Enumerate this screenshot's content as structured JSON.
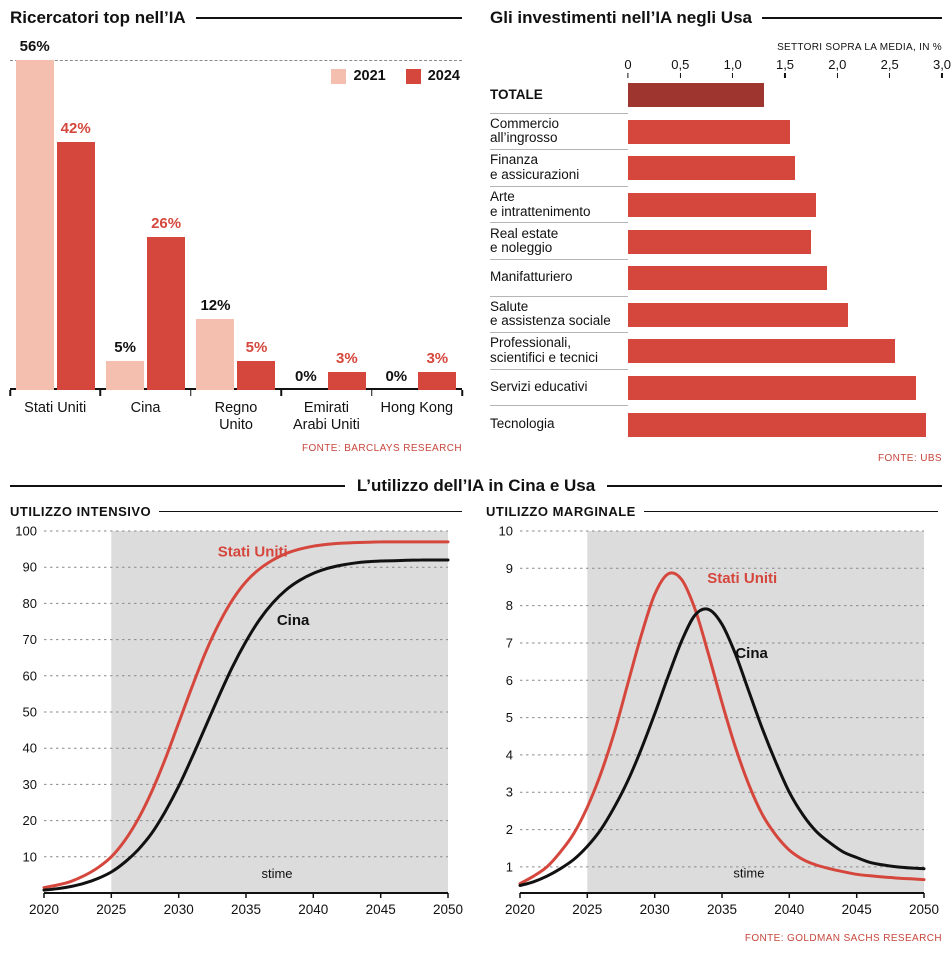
{
  "page": {
    "bottom_title": "L’utilizzo dell’IA in Cina e Usa",
    "bottom_source": "FONTE: GOLDMAN SACHS RESEARCH"
  },
  "chart_data": [
    {
      "id": "ricercatori-top-ia",
      "type": "bar",
      "title": "Ricercatori top nell’IA",
      "categories": [
        "Stati Uniti",
        "Cina",
        "Regno Unito",
        "Emirati Arabi Uniti",
        "Hong Kong"
      ],
      "category_lines": [
        [
          "Stati Uniti"
        ],
        [
          "Cina"
        ],
        [
          "Regno",
          "Unito"
        ],
        [
          "Emirati",
          "Arabi Uniti"
        ],
        [
          "Hong Kong"
        ]
      ],
      "series": [
        {
          "name": "2021",
          "color": "#f4bfae",
          "label_color": "#111111",
          "values": [
            56,
            5,
            12,
            0,
            0
          ]
        },
        {
          "name": "2024",
          "color": "#d5473d",
          "label_color": "#d5473d",
          "values": [
            42,
            26,
            5,
            3,
            3
          ]
        }
      ],
      "value_suffix": "%",
      "ylim": [
        0,
        56
      ],
      "gridline_at": 56,
      "legend_position": "top-right",
      "source": "FONTE: BARCLAYS RESEARCH"
    },
    {
      "id": "investimenti-ia-usa",
      "type": "bar",
      "orientation": "horizontal",
      "title": "Gli investimenti nell’IA negli Usa",
      "axis_caption": "SETTORI SOPRA LA MEDIA, IN %",
      "x_ticks": [
        {
          "label": "0",
          "value": 0
        },
        {
          "label": "0,5",
          "value": 0.5
        },
        {
          "label": "1,0",
          "value": 1
        },
        {
          "label": "1,5",
          "value": 1.5
        },
        {
          "label": "2,0",
          "value": 2
        },
        {
          "label": "2,5",
          "value": 2.5
        },
        {
          "label": "3,0",
          "value": 3
        }
      ],
      "xlim": [
        0,
        3
      ],
      "categories": [
        "TOTALE",
        "Commercio all’ingrosso",
        "Finanza e assicurazioni",
        "Arte e intrattenimento",
        "Real estate e noleggio",
        "Manifatturiero",
        "Salute e assistenza sociale",
        "Professionali, scientifici e tecnici",
        "Servizi educativi",
        "Tecnologia"
      ],
      "category_lines": [
        [
          "TOTALE"
        ],
        [
          "Commercio",
          "all’ingrosso"
        ],
        [
          "Finanza",
          "e assicurazioni"
        ],
        [
          "Arte",
          "e intrattenimento"
        ],
        [
          "Real estate",
          "e noleggio"
        ],
        [
          "Manifatturiero"
        ],
        [
          "Salute",
          "e assistenza sociale"
        ],
        [
          "Professionali,",
          "scientifici e tecnici"
        ],
        [
          "Servizi educativi"
        ],
        [
          "Tecnologia"
        ]
      ],
      "values": [
        1.3,
        1.55,
        1.6,
        1.8,
        1.75,
        1.9,
        2.1,
        2.55,
        2.75,
        2.85
      ],
      "emphasis_index": 0,
      "colors": {
        "emphasis": "#9e352f",
        "bar": "#d5473d"
      },
      "source": "FONTE: UBS"
    },
    {
      "id": "utilizzo-intensivo",
      "type": "line",
      "title": "UTILIZZO INTENSIVO",
      "xlim": [
        2020,
        2050
      ],
      "x_start": 2020,
      "x_step": 1,
      "x_ticks": [
        2020,
        2025,
        2030,
        2035,
        2040,
        2045,
        2050
      ],
      "y_ticks": [
        10,
        20,
        30,
        40,
        50,
        60,
        70,
        80,
        90,
        100
      ],
      "ylim": [
        0,
        100
      ],
      "forecast_from": 2025,
      "estimate_label": {
        "text": "stime",
        "x": 2037.3,
        "y": 4.2
      },
      "series": [
        {
          "name": "Stati Uniti",
          "color": "#d5473d",
          "values": [
            1.5,
            2.2,
            3.2,
            4.8,
            7,
            10,
            14.5,
            20.5,
            28,
            37,
            47,
            57,
            66.5,
            74.5,
            81,
            86,
            89.5,
            92,
            93.8,
            95,
            95.8,
            96.3,
            96.6,
            96.8,
            96.9,
            97,
            97,
            97,
            97,
            97,
            97
          ]
        },
        {
          "name": "Cina",
          "color": "#111111",
          "values": [
            0.8,
            1.2,
            1.8,
            2.7,
            4,
            5.8,
            8.5,
            12,
            16.5,
            22.5,
            29.5,
            37.5,
            46,
            54.5,
            62.5,
            69.5,
            75.5,
            80.2,
            83.8,
            86.4,
            88.3,
            89.6,
            90.5,
            91.1,
            91.5,
            91.7,
            91.8,
            91.9,
            92,
            92,
            92
          ]
        }
      ],
      "annotations": [
        {
          "text": "Stati Uniti",
          "x": 2035.5,
          "y": 93,
          "color": "#d5473d"
        },
        {
          "text": "Cina",
          "x": 2038.5,
          "y": 74,
          "color": "#111111"
        }
      ]
    },
    {
      "id": "utilizzo-marginale",
      "type": "line",
      "title": "UTILIZZO MARGINALE",
      "xlim": [
        2020,
        2050
      ],
      "x_start": 2020,
      "x_step": 1,
      "x_ticks": [
        2020,
        2025,
        2030,
        2035,
        2040,
        2045,
        2050
      ],
      "y_ticks": [
        1,
        2,
        3,
        4,
        5,
        6,
        7,
        8,
        9,
        10
      ],
      "ylim": [
        0.3,
        10
      ],
      "forecast_from": 2025,
      "estimate_label": {
        "text": "stime",
        "x": 2037,
        "y": 0.72
      },
      "series": [
        {
          "name": "Stati Uniti",
          "color": "#d5473d",
          "values": [
            0.55,
            0.75,
            1,
            1.4,
            1.9,
            2.6,
            3.5,
            4.6,
            5.9,
            7.2,
            8.3,
            8.85,
            8.7,
            7.9,
            6.7,
            5.4,
            4.2,
            3.2,
            2.4,
            1.85,
            1.45,
            1.2,
            1.05,
            0.95,
            0.87,
            0.8,
            0.76,
            0.73,
            0.7,
            0.68,
            0.66
          ]
        },
        {
          "name": "Cina",
          "color": "#111111",
          "values": [
            0.5,
            0.6,
            0.75,
            0.95,
            1.2,
            1.55,
            2,
            2.6,
            3.3,
            4.15,
            5.1,
            6.1,
            7.05,
            7.75,
            7.9,
            7.5,
            6.7,
            5.7,
            4.7,
            3.8,
            3,
            2.4,
            1.95,
            1.65,
            1.4,
            1.25,
            1.12,
            1.05,
            1,
            0.97,
            0.95
          ]
        }
      ],
      "annotations": [
        {
          "text": "Stati Uniti",
          "x": 2036.5,
          "y": 8.6,
          "color": "#d5473d"
        },
        {
          "text": "Cina",
          "x": 2037.2,
          "y": 6.6,
          "color": "#111111"
        }
      ]
    }
  ]
}
